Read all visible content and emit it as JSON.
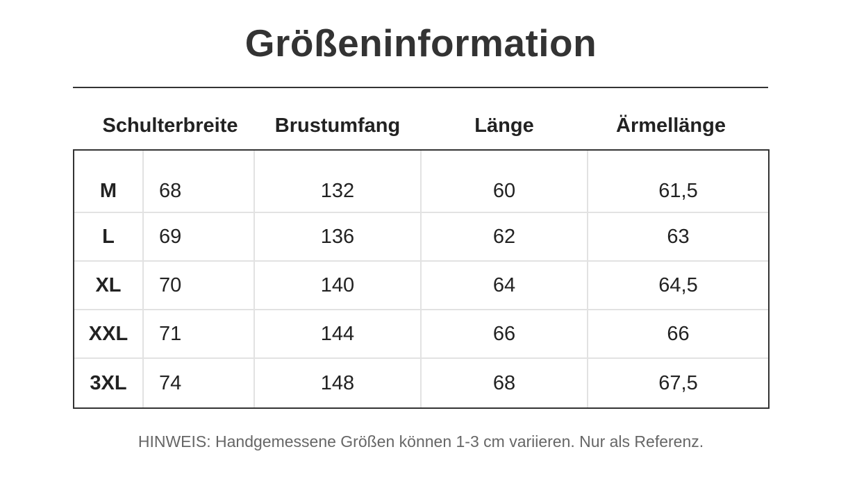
{
  "title": "Größeninformation",
  "columns": [
    "Schulterbreite",
    "Brustumfang",
    "Länge",
    "Ärmellänge"
  ],
  "rows": [
    {
      "size": "M",
      "values": [
        "68",
        "132",
        "60",
        "61,5"
      ]
    },
    {
      "size": "L",
      "values": [
        "69",
        "136",
        "62",
        "63"
      ]
    },
    {
      "size": "XL",
      "values": [
        "70",
        "140",
        "64",
        "64,5"
      ]
    },
    {
      "size": "XXL",
      "values": [
        "71",
        "144",
        "66",
        "66"
      ]
    },
    {
      "size": "3XL",
      "values": [
        "74",
        "148",
        "68",
        "67,5"
      ]
    }
  ],
  "note": "HINWEIS: Handgemessene Größen können 1-3 cm variieren. Nur als Referenz."
}
